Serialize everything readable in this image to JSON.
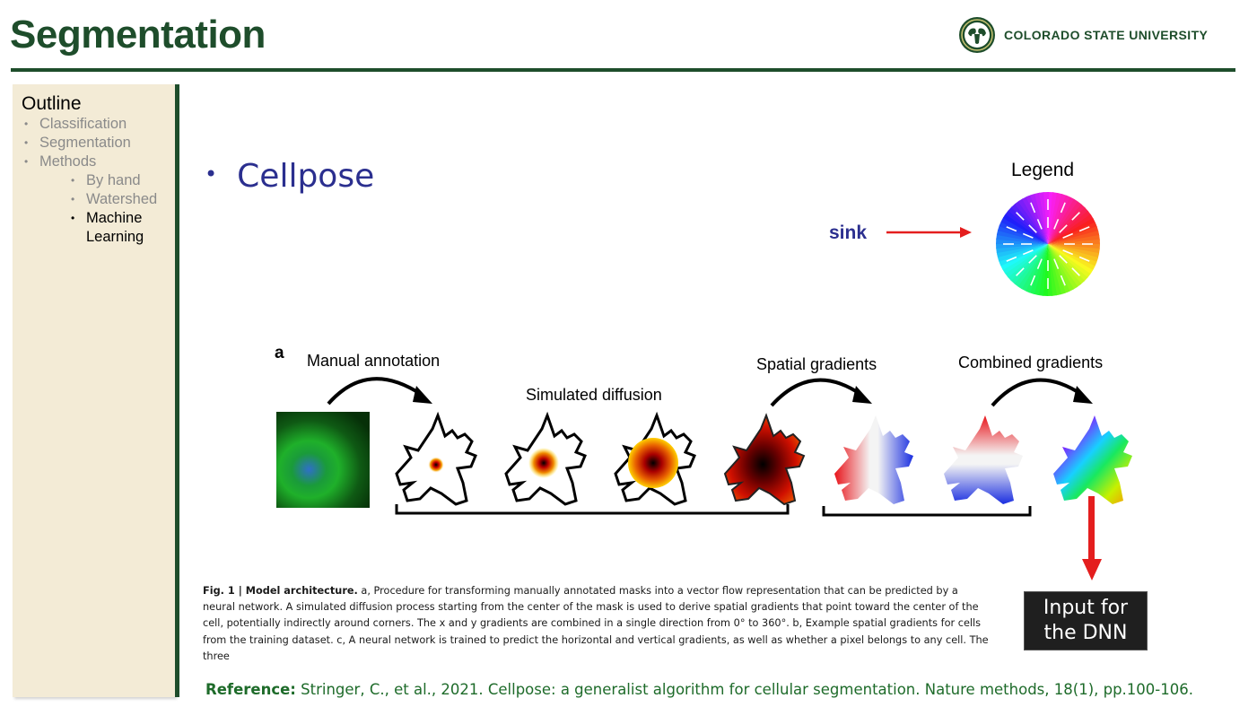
{
  "slide": {
    "title": "Segmentation",
    "brand": "COLORADO STATE UNIVERSITY"
  },
  "colors": {
    "csu_green": "#1e4d2b",
    "sidebar_bg": "#f3ebd6",
    "bullet_blue": "#2b2f8f",
    "arrow_red": "#e41e1e"
  },
  "sidebar": {
    "heading": "Outline",
    "items": [
      {
        "label": "Classification",
        "level": 1,
        "active": false
      },
      {
        "label": "Segmentation",
        "level": 1,
        "active": false
      },
      {
        "label": "Methods",
        "level": 1,
        "active": false
      },
      {
        "label": "By hand",
        "level": 2,
        "active": false
      },
      {
        "label": "Watershed",
        "level": 2,
        "active": false
      },
      {
        "label": "Machine Learning",
        "level": 2,
        "active": true
      }
    ]
  },
  "main": {
    "bullet": "Cellpose",
    "legend_title": "Legend",
    "sink_label": "sink"
  },
  "figure": {
    "panel_label": "a",
    "labels": {
      "manual": "Manual annotation",
      "diffusion": "Simulated diffusion",
      "spatial": "Spatial gradients",
      "combined": "Combined gradients"
    },
    "caption": {
      "label": "Fig. 1 | Model architecture.",
      "text": " a, Procedure for transforming manually annotated masks into a vector flow representation that can be predicted by a neural network. A simulated diffusion process starting from the center of the mask is used to derive spatial gradients that point toward the center of the cell, potentially indirectly around corners. The x and y gradients are combined in a single direction from 0° to 360°. b, Example spatial gradients for cells from the training dataset. c, A neural network is trained to predict the horizontal and vertical gradients, as well as whether a pixel belongs to any cell. The three"
    }
  },
  "dnn_box": {
    "line1": "Input for",
    "line2": "the DNN"
  },
  "reference": {
    "label": "Reference:",
    "text": " Stringer, C., et al., 2021. Cellpose: a generalist algorithm for cellular segmentation. Nature methods, 18(1), pp.100-106."
  }
}
